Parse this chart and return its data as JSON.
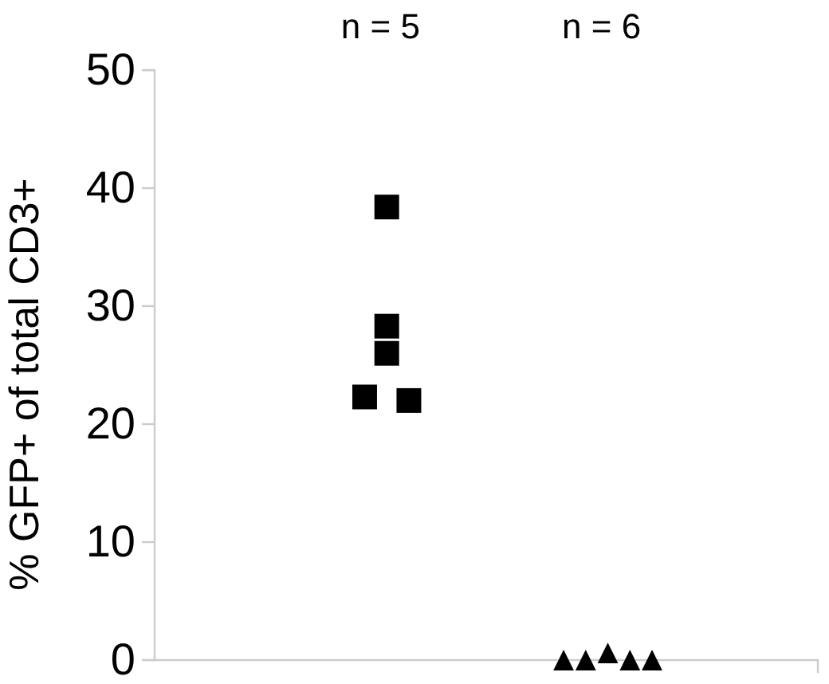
{
  "chart_data": {
    "type": "scatter",
    "ylabel": "% GFP+ of total CD3+",
    "annotations": [
      "n = 5",
      "n = 6"
    ],
    "categories": [
      null,
      null,
      null,
      null,
      null,
      null,
      null,
      null,
      null,
      null,
      null,
      null,
      null,
      null,
      null,
      null,
      null,
      null,
      null,
      null,
      null,
      null,
      null,
      null,
      null,
      null,
      null,
      null,
      null,
      null
    ],
    "ylim": [
      0,
      50
    ],
    "yticks": [
      0,
      10,
      20,
      30,
      40,
      50
    ],
    "tick_labels": "y",
    "grid": false,
    "marker": "square",
    "series": [
      {
        "color": "#000000",
        "values": [
          null,
          null,
          null,
          null,
          null,
          null,
          null,
          null,
          null,
          22.3,
          38.4,
          22.0,
          null,
          null,
          null,
          null,
          null,
          null,
          null,
          null,
          null,
          null,
          null,
          null,
          null,
          null,
          null,
          null,
          null,
          null
        ]
      },
      {
        "color": "#000000",
        "values": [
          null,
          null,
          null,
          null,
          null,
          null,
          null,
          null,
          null,
          null,
          28.3,
          null,
          null,
          null,
          null,
          null,
          null,
          null,
          null,
          null,
          null,
          null,
          null,
          null,
          null,
          null,
          null,
          null,
          null,
          null
        ]
      },
      {
        "color": "#000000",
        "values": [
          null,
          null,
          null,
          null,
          null,
          null,
          null,
          null,
          null,
          null,
          26.0,
          null,
          null,
          null,
          null,
          null,
          null,
          null,
          null,
          null,
          null,
          null,
          null,
          null,
          null,
          null,
          null,
          null,
          null,
          null
        ]
      },
      {
        "color": "#000000",
        "marker": "triangle",
        "values": [
          null,
          null,
          null,
          null,
          null,
          null,
          null,
          null,
          null,
          null,
          null,
          null,
          null,
          null,
          null,
          null,
          null,
          null,
          0,
          0,
          0.6,
          0,
          0,
          null,
          null,
          null,
          null,
          null,
          null,
          null
        ]
      }
    ]
  }
}
